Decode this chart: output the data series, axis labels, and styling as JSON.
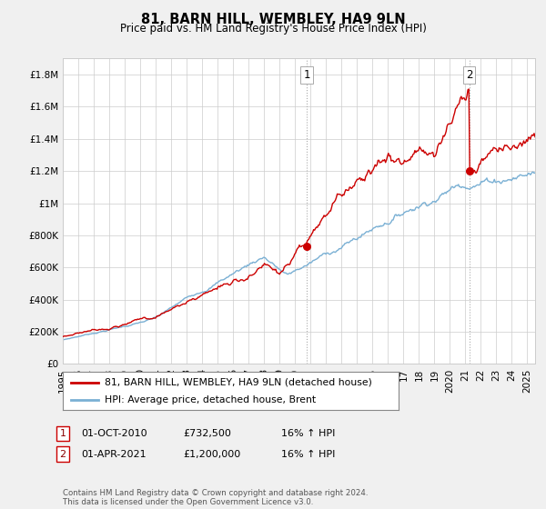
{
  "title": "81, BARN HILL, WEMBLEY, HA9 9LN",
  "subtitle": "Price paid vs. HM Land Registry's House Price Index (HPI)",
  "legend_label1": "81, BARN HILL, WEMBLEY, HA9 9LN (detached house)",
  "legend_label2": "HPI: Average price, detached house, Brent",
  "annotation1_date": "01-OCT-2010",
  "annotation1_price": "£732,500",
  "annotation1_hpi": "16% ↑ HPI",
  "annotation2_date": "01-APR-2021",
  "annotation2_price": "£1,200,000",
  "annotation2_hpi": "16% ↑ HPI",
  "footer": "Contains HM Land Registry data © Crown copyright and database right 2024.\nThis data is licensed under the Open Government Licence v3.0.",
  "line1_color": "#cc0000",
  "line2_color": "#7ab0d4",
  "background_color": "#f0f0f0",
  "plot_bg_color": "#ffffff",
  "ylim": [
    0,
    1900000
  ],
  "xlim_start": 1995.0,
  "xlim_end": 2025.5,
  "marker1_x": 2010.75,
  "marker1_y": 732500,
  "marker2_x": 2021.25,
  "marker2_y": 1200000,
  "yticks": [
    0,
    200000,
    400000,
    600000,
    800000,
    1000000,
    1200000,
    1400000,
    1600000,
    1800000
  ]
}
